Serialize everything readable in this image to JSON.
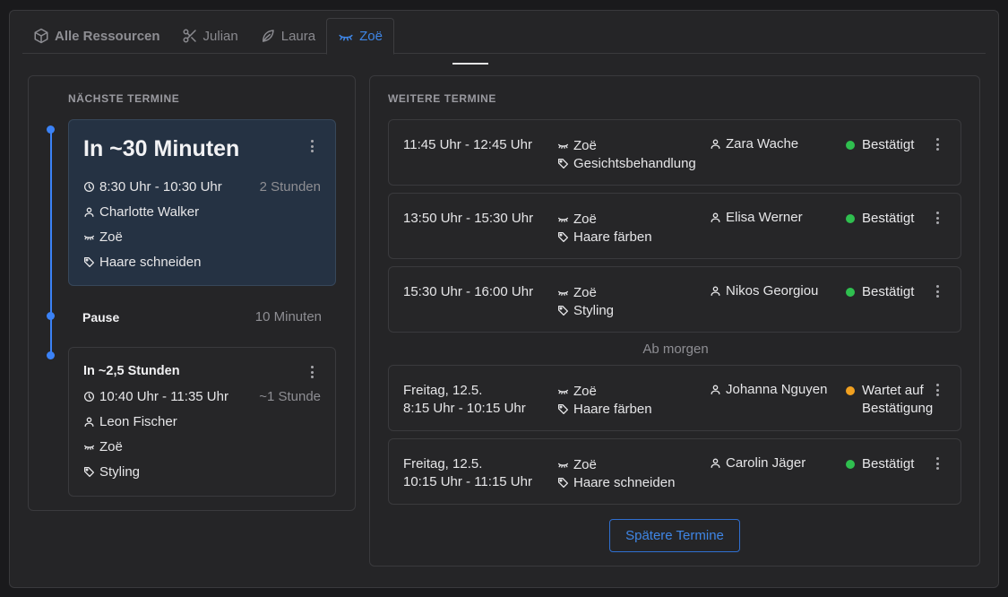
{
  "tabs": [
    {
      "label": "Alle Ressourcen",
      "icon": "cube-icon"
    },
    {
      "label": "Julian",
      "icon": "scissors-icon"
    },
    {
      "label": "Laura",
      "icon": "leaf-icon"
    },
    {
      "label": "Zoë",
      "icon": "eyelashes-icon",
      "active": true
    }
  ],
  "left": {
    "title": "Nächste Termine",
    "current": {
      "heading": "In ~30 Minuten",
      "time": "8:30 Uhr - 10:30 Uhr",
      "duration": "2 Stunden",
      "client": "Charlotte Walker",
      "resource": "Zoë",
      "service": "Haare schneiden"
    },
    "pause": {
      "label": "Pause",
      "duration": "10 Minuten"
    },
    "next": {
      "heading": "In ~2,5 Stunden",
      "time": "10:40 Uhr - 11:35 Uhr",
      "duration": "~1 Stunde",
      "client": "Leon Fischer",
      "resource": "Zoë",
      "service": "Styling"
    }
  },
  "right": {
    "title": "Weitere Termine",
    "appointments": [
      {
        "time1": "11:45 Uhr - 12:45 Uhr",
        "time2": "",
        "resource": "Zoë",
        "service": "Gesichtsbehandlung",
        "client": "Zara Wache",
        "status1": "Bestätigt",
        "status2": "",
        "status_color": "#2fbf4f"
      },
      {
        "time1": "13:50 Uhr - 15:30 Uhr",
        "time2": "",
        "resource": "Zoë",
        "service": "Haare färben",
        "client": "Elisa Werner",
        "status1": "Bestätigt",
        "status2": "",
        "status_color": "#2fbf4f"
      },
      {
        "time1": "15:30 Uhr - 16:00 Uhr",
        "time2": "",
        "resource": "Zoë",
        "service": "Styling",
        "client": "Nikos Georgiou",
        "status1": "Bestätigt",
        "status2": "",
        "status_color": "#2fbf4f"
      },
      {
        "time1": "Freitag, 12.5.",
        "time2": "8:15 Uhr - 10:15 Uhr",
        "resource": "Zoë",
        "service": "Haare färben",
        "client": "Johanna Nguyen",
        "status1": "Wartet auf",
        "status2": "Bestätigung",
        "status_color": "#f0a020"
      },
      {
        "time1": "Freitag, 12.5.",
        "time2": "10:15 Uhr - 11:15 Uhr",
        "resource": "Zoë",
        "service": "Haare schneiden",
        "client": "Carolin Jäger",
        "status1": "Bestätigt",
        "status2": "",
        "status_color": "#2fbf4f"
      }
    ],
    "divider": "Ab morgen",
    "later_button": "Spätere Termine"
  }
}
